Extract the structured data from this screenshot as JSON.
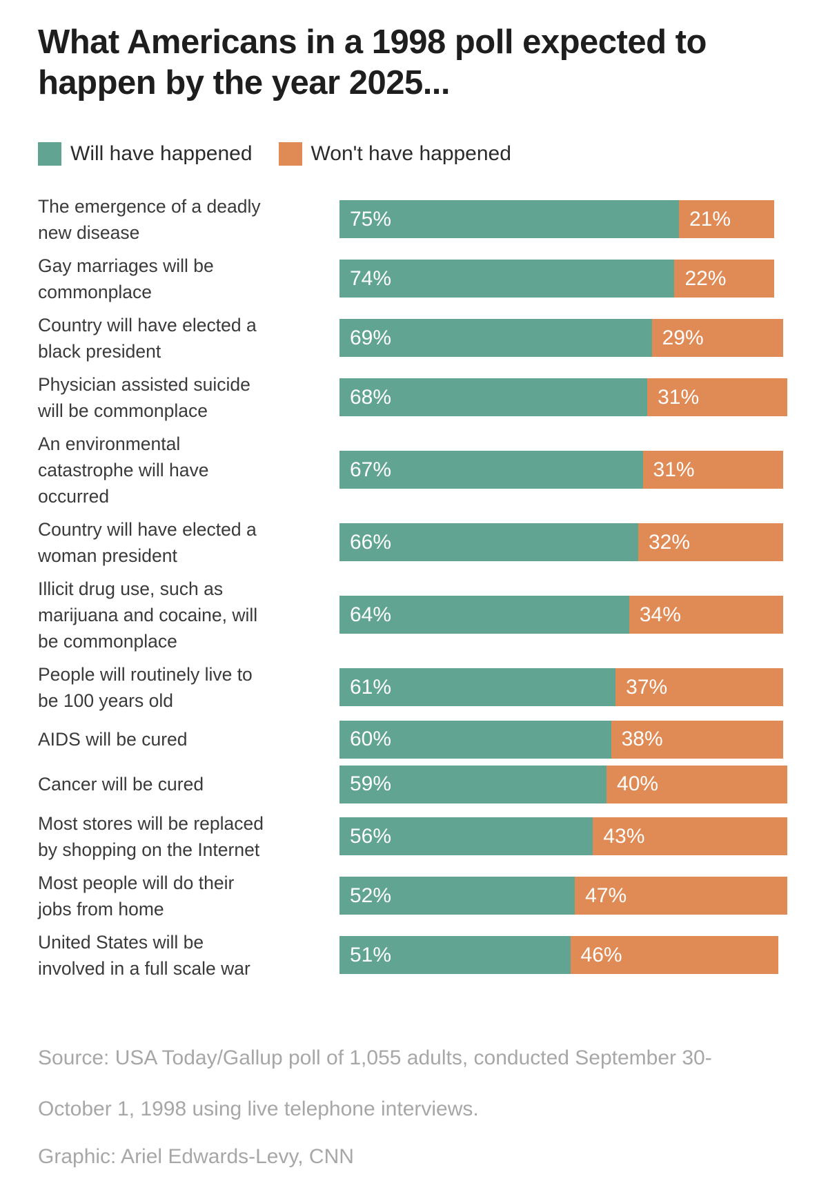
{
  "title": "What Americans in a 1998 poll expected to happen by the year 2025...",
  "colors": {
    "will": "#62a492",
    "wont": "#e08a55",
    "title_text": "#1e1e1e",
    "label_text": "#3a3a3a",
    "footer_text": "#a7a7a7",
    "bar_value_text": "#ffffff"
  },
  "legend": {
    "items": [
      {
        "label": "Will have happened",
        "color": "#62a492"
      },
      {
        "label": "Won't have happened",
        "color": "#e08a55"
      }
    ]
  },
  "chart_data": {
    "type": "bar",
    "orientation": "horizontal-stacked",
    "title": "What Americans in a 1998 poll expected to happen by the year 2025...",
    "xlim": [
      0,
      100
    ],
    "value_suffix": "%",
    "grid": false,
    "legend_position": "top-left",
    "categories": [
      "The emergence of a deadly\nnew disease",
      "Gay marriages will be\ncommonplace",
      "Country will have elected a\nblack president",
      "Physician assisted suicide\nwill be commonplace",
      "An environmental\ncatastrophe will have\noccurred",
      "Country will have elected a\nwoman president",
      "Illicit drug use, such as\nmarijuana and cocaine, will\nbe commonplace",
      "People will routinely live to\nbe 100 years old",
      "AIDS will be cured",
      "Cancer will be cured",
      "Most stores will be replaced\nby shopping on the Internet",
      "Most people will do their\njobs from home",
      "United States will be\ninvolved in a full scale war"
    ],
    "series": [
      {
        "name": "Will have happened",
        "color": "#62a492",
        "values": [
          75,
          74,
          69,
          68,
          67,
          66,
          64,
          61,
          60,
          59,
          56,
          52,
          51
        ]
      },
      {
        "name": "Won't have happened",
        "color": "#e08a55",
        "values": [
          21,
          22,
          29,
          31,
          31,
          32,
          34,
          37,
          38,
          40,
          43,
          47,
          46
        ]
      }
    ]
  },
  "footer": {
    "source": "Source: USA Today/Gallup poll of 1,055 adults, conducted September 30-October 1, 1998 using live telephone interviews.",
    "credit": "Graphic: Ariel Edwards-Levy, CNN"
  }
}
